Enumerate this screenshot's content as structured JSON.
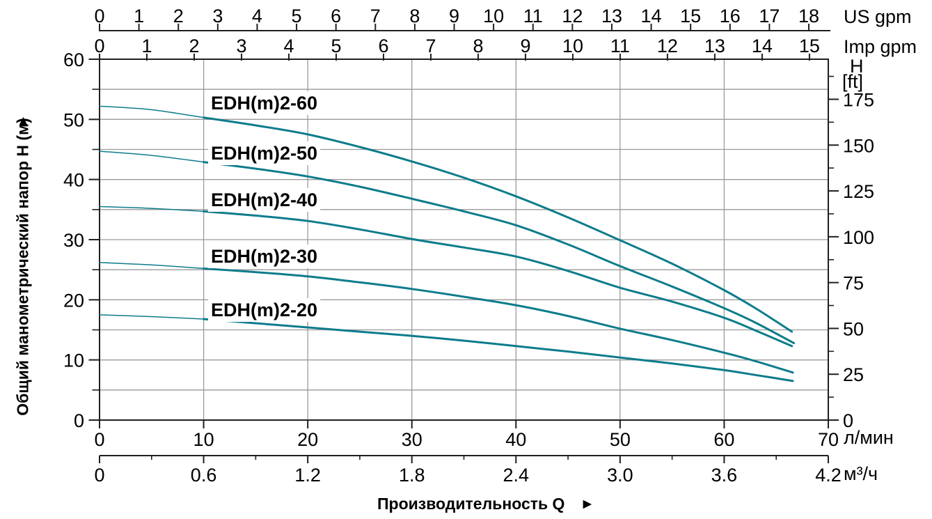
{
  "chart_data": {
    "type": "line",
    "title": "",
    "x_label": "Производительность Q",
    "x_axes": {
      "lmin": {
        "unit": "л/мин",
        "range": [
          0,
          70
        ],
        "ticks": [
          "0",
          "10",
          "20",
          "30",
          "40",
          "50",
          "60",
          "70"
        ]
      },
      "m3h": {
        "unit": "м³/ч",
        "range": [
          0,
          4.2
        ],
        "ticks": [
          "0",
          "0.6",
          "1.2",
          "1.8",
          "2.4",
          "3.0",
          "3.6",
          "4.2"
        ],
        "minor_step": 0.3
      },
      "us_gpm": {
        "unit": "US gpm",
        "ticks": [
          0,
          1,
          2,
          3,
          4,
          5,
          6,
          7,
          8,
          9,
          10,
          11,
          12,
          13,
          14,
          15,
          16,
          17,
          18
        ],
        "lmin_per_unit": 3.785
      },
      "imp_gpm": {
        "unit": "Imp gpm",
        "ticks": [
          0,
          1,
          2,
          3,
          4,
          5,
          6,
          7,
          8,
          9,
          10,
          11,
          12,
          13,
          14,
          15
        ],
        "lmin_per_unit": 4.546
      }
    },
    "y_axes": {
      "m": {
        "title": "Общий манометрический напор H (м)",
        "range": [
          0,
          60
        ],
        "tick_step": 10,
        "minor_step": 5
      },
      "ft": {
        "unit_line1": "H",
        "unit_line2": "[ft]",
        "max_tick": 175,
        "tick_step": 25,
        "minor_step": 12.5,
        "m_per_ft": 0.3048
      }
    },
    "grid": {
      "x_step_lmin": 10,
      "y_step_m": 5
    },
    "thin_until_lmin": 10,
    "series": [
      {
        "name": "EDH(m)2-60",
        "points": [
          [
            0,
            52.2
          ],
          [
            5,
            51.6
          ],
          [
            10,
            50.3
          ],
          [
            15,
            49.0
          ],
          [
            20,
            47.5
          ],
          [
            25,
            45.4
          ],
          [
            30,
            43.0
          ],
          [
            35,
            40.3
          ],
          [
            40,
            37.2
          ],
          [
            45,
            33.7
          ],
          [
            50,
            29.9
          ],
          [
            55,
            26.0
          ],
          [
            60,
            21.6
          ],
          [
            63,
            18.6
          ],
          [
            66.5,
            14.7
          ]
        ]
      },
      {
        "name": "EDH(m)2-50",
        "points": [
          [
            0,
            44.7
          ],
          [
            5,
            44.0
          ],
          [
            10,
            42.9
          ],
          [
            15,
            41.8
          ],
          [
            20,
            40.5
          ],
          [
            25,
            38.8
          ],
          [
            30,
            36.8
          ],
          [
            35,
            34.7
          ],
          [
            40,
            32.4
          ],
          [
            45,
            29.2
          ],
          [
            50,
            25.6
          ],
          [
            55,
            22.2
          ],
          [
            60,
            18.6
          ],
          [
            63,
            16.2
          ],
          [
            66.7,
            12.8
          ]
        ]
      },
      {
        "name": "EDH(m)2-40",
        "points": [
          [
            0,
            35.5
          ],
          [
            5,
            35.2
          ],
          [
            10,
            34.7
          ],
          [
            15,
            34.0
          ],
          [
            20,
            33.1
          ],
          [
            25,
            31.7
          ],
          [
            30,
            30.1
          ],
          [
            35,
            28.7
          ],
          [
            40,
            27.2
          ],
          [
            45,
            24.8
          ],
          [
            50,
            22.0
          ],
          [
            55,
            19.7
          ],
          [
            60,
            17.0
          ],
          [
            63,
            14.9
          ],
          [
            66.5,
            12.3
          ]
        ]
      },
      {
        "name": "EDH(m)2-30",
        "points": [
          [
            0,
            26.2
          ],
          [
            5,
            25.8
          ],
          [
            10,
            25.2
          ],
          [
            15,
            24.6
          ],
          [
            20,
            23.9
          ],
          [
            25,
            22.9
          ],
          [
            30,
            21.8
          ],
          [
            35,
            20.5
          ],
          [
            40,
            19.1
          ],
          [
            45,
            17.3
          ],
          [
            50,
            15.2
          ],
          [
            55,
            13.3
          ],
          [
            60,
            11.2
          ],
          [
            63,
            9.8
          ],
          [
            66.6,
            7.9
          ]
        ]
      },
      {
        "name": "EDH(m)2-20",
        "points": [
          [
            0,
            17.5
          ],
          [
            5,
            17.2
          ],
          [
            10,
            16.8
          ],
          [
            15,
            16.1
          ],
          [
            20,
            15.4
          ],
          [
            25,
            14.7
          ],
          [
            30,
            14.0
          ],
          [
            35,
            13.2
          ],
          [
            40,
            12.3
          ],
          [
            45,
            11.4
          ],
          [
            50,
            10.4
          ],
          [
            55,
            9.4
          ],
          [
            60,
            8.3
          ],
          [
            63,
            7.5
          ],
          [
            66.6,
            6.5
          ]
        ]
      }
    ]
  },
  "icons": {
    "up_arrow": "▲",
    "right_arrow": "►"
  },
  "colors": {
    "curve": "#0d7c8b",
    "grid": "#9a9a9a",
    "axis": "#1f1f1f",
    "text": "#000000"
  }
}
